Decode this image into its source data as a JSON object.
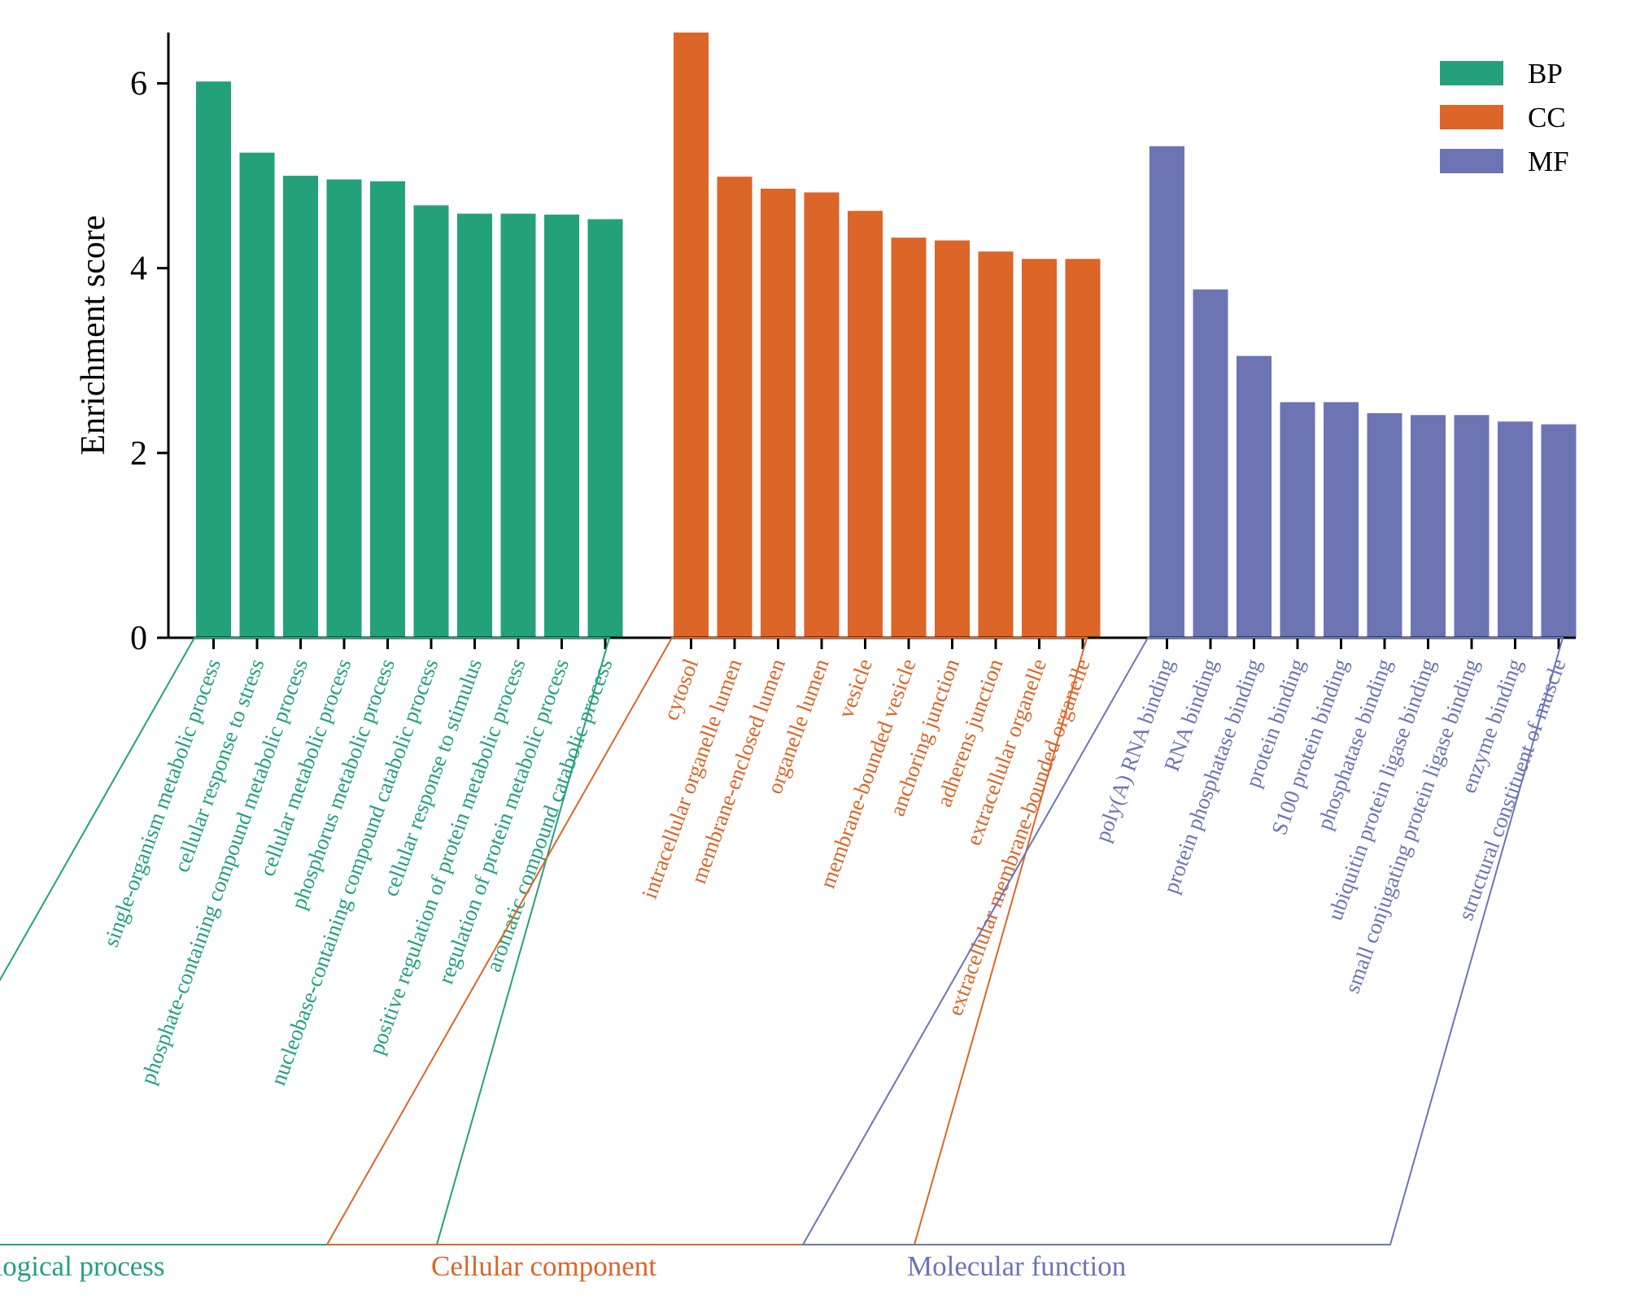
{
  "chart_data": {
    "type": "bar",
    "ylabel": "Enrichment score",
    "ylim": [
      0,
      6.55
    ],
    "yticks": [
      0,
      2,
      4,
      6
    ],
    "colors": {
      "BP": "#23a17b",
      "CC": "#dc6528",
      "MF": "#6c74b4"
    },
    "legend": {
      "position": "top-right",
      "entries": [
        {
          "key": "BP",
          "label": "BP"
        },
        {
          "key": "CC",
          "label": "CC"
        },
        {
          "key": "MF",
          "label": "MF"
        }
      ]
    },
    "groups": [
      {
        "key": "BP",
        "name": "Biological process",
        "categories": [
          "single-organism metabolic process",
          "cellular response to stress",
          "phosphate-containing compound metabolic process",
          "cellular metabolic process",
          "phosphorus metabolic process",
          "nucleobase-containing compound catabolic process",
          "cellular response to stimulus",
          "positive regulation of protein metabolic process",
          "regulation of protein metabolic process",
          "aromatic compound catabolic process"
        ],
        "values": [
          6.02,
          5.25,
          5.0,
          4.96,
          4.94,
          4.68,
          4.59,
          4.59,
          4.58,
          4.53
        ]
      },
      {
        "key": "CC",
        "name": "Cellular component",
        "categories": [
          "cytosol",
          "intracellular organelle lumen",
          "membrane-enclosed lumen",
          "organelle lumen",
          "vesicle",
          "membrane-bounded vesicle",
          "anchoring junction",
          "adherens junction",
          "extracellular organelle",
          "extracellular membrane-bounded organelle"
        ],
        "values": [
          6.55,
          4.99,
          4.86,
          4.82,
          4.62,
          4.33,
          4.3,
          4.18,
          4.1,
          4.1
        ]
      },
      {
        "key": "MF",
        "name": "Molecular function",
        "categories": [
          "poly(A) RNA binding",
          "RNA binding",
          "protein phosphatase binding",
          "protein binding",
          "S100 protein binding",
          "phosphatase binding",
          "ubiquitin protein ligase binding",
          "small conjugating protein ligase binding",
          "enzyme binding",
          "structural constituent of muscle"
        ],
        "values": [
          5.32,
          3.77,
          3.05,
          2.55,
          2.55,
          2.43,
          2.41,
          2.41,
          2.34,
          2.31
        ]
      }
    ]
  }
}
